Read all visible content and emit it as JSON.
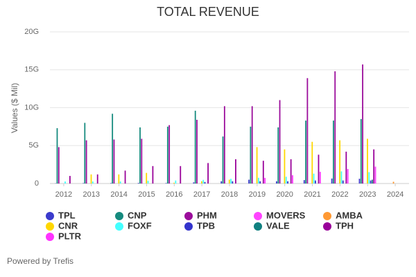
{
  "chart_data": {
    "type": "bar",
    "title": "TOTAL REVENUE",
    "y_label": "Values ($ Mil)",
    "categories": [
      "2012",
      "2013",
      "2014",
      "2015",
      "2016",
      "2017",
      "2018",
      "2019",
      "2020",
      "2021",
      "2022",
      "2023",
      "2024"
    ],
    "ylim": [
      0,
      20
    ],
    "yticks": [
      0,
      {
        "value": 5,
        "label": "5G"
      },
      {
        "value": 10,
        "label": "10G"
      },
      {
        "value": 15,
        "label": "15G"
      },
      {
        "value": 20,
        "label": "20G"
      }
    ],
    "grid": true,
    "series": [
      {
        "name": "TPL",
        "color": "#3b3bcc",
        "values": [
          0.03,
          0.05,
          0.06,
          0.08,
          0.06,
          0.15,
          0.3,
          0.5,
          0.3,
          0.45,
          0.66,
          0.63,
          null
        ]
      },
      {
        "name": "CNP",
        "color": "#158a7e",
        "values": [
          7.3,
          8.0,
          9.2,
          7.4,
          7.5,
          9.6,
          6.2,
          7.5,
          7.4,
          8.3,
          8.3,
          8.5,
          null
        ]
      },
      {
        "name": "PHM",
        "color": "#9b0c9b",
        "values": [
          4.8,
          5.7,
          5.8,
          5.9,
          7.7,
          8.4,
          10.2,
          10.2,
          11.0,
          13.9,
          14.8,
          15.7,
          null
        ]
      },
      {
        "name": "MOVERS",
        "color": "#ff44ff",
        "values": [
          null,
          null,
          null,
          null,
          null,
          null,
          null,
          null,
          null,
          null,
          null,
          null,
          null
        ]
      },
      {
        "name": "AMBA",
        "color": "#ff9933",
        "values": [
          null,
          null,
          null,
          null,
          null,
          null,
          null,
          null,
          null,
          null,
          null,
          null,
          0.23
        ]
      },
      {
        "name": "CNR",
        "color": "#ffd700",
        "values": [
          null,
          1.2,
          1.2,
          1.4,
          0.1,
          0.3,
          0.5,
          4.8,
          4.5,
          5.5,
          5.7,
          5.9,
          null
        ]
      },
      {
        "name": "FOXF",
        "color": "#44ffff",
        "values": [
          0.27,
          0.27,
          0.27,
          0.37,
          0.4,
          0.48,
          0.62,
          0.75,
          0.89,
          1.3,
          1.6,
          1.5,
          null
        ]
      },
      {
        "name": "TPB",
        "color": "#3333cc",
        "values": [
          null,
          null,
          null,
          null,
          null,
          0.2,
          0.3,
          0.3,
          0.3,
          0.4,
          0.4,
          0.4,
          null
        ]
      },
      {
        "name": "VALE",
        "color": "#118080",
        "values": [
          null,
          null,
          null,
          null,
          null,
          null,
          null,
          null,
          null,
          null,
          null,
          0.5,
          null
        ]
      },
      {
        "name": "TPH",
        "color": "#990099",
        "values": [
          1.0,
          1.2,
          1.7,
          2.3,
          2.3,
          2.7,
          3.2,
          3.0,
          3.2,
          3.8,
          4.2,
          4.5,
          null
        ]
      },
      {
        "name": "PLTR",
        "color": "#ff33ff",
        "values": [
          null,
          null,
          null,
          null,
          null,
          null,
          null,
          0.74,
          1.09,
          1.54,
          1.91,
          2.23,
          null
        ]
      }
    ],
    "footer": "Powered by Trefis"
  }
}
